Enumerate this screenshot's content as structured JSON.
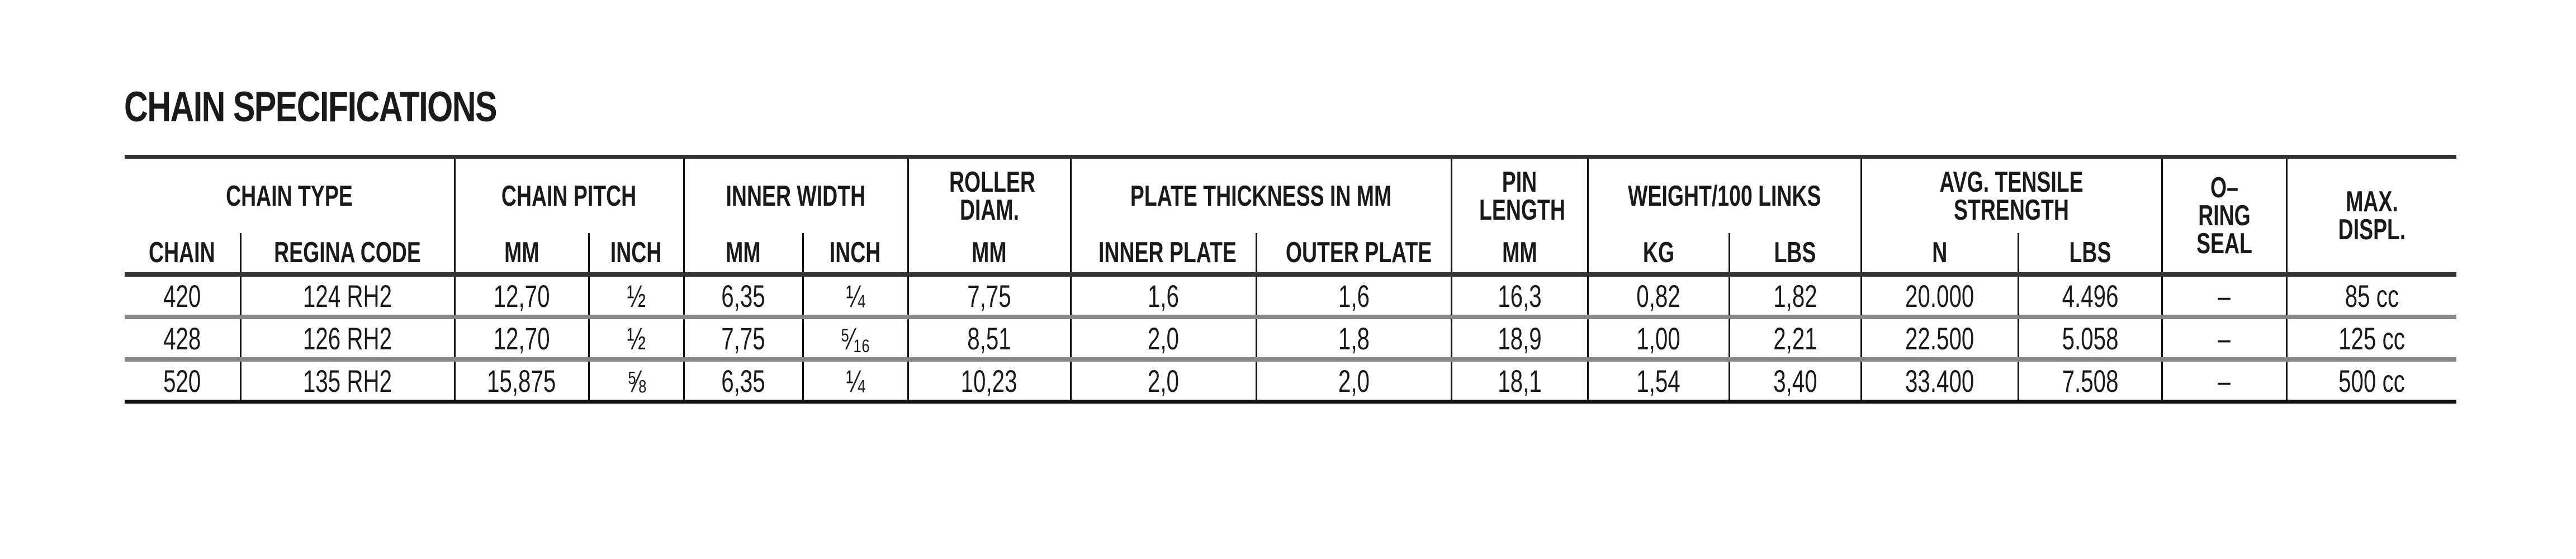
{
  "title": "CHAIN SPECIFICATIONS",
  "header_groups": {
    "chain_type": "CHAIN TYPE",
    "chain_pitch": "CHAIN PITCH",
    "inner_width": "INNER WIDTH",
    "roller_diam": "ROLLER DIAM.",
    "plate_thickness": "PLATE THICKNESS IN MM",
    "pin_length": "PIN LENGTH",
    "weight": "WEIGHT/100 LINKS",
    "tensile": "AVG. TENSILE STRENGTH",
    "oring": "O–RING SEAL",
    "max_displ": "MAX. DISPL."
  },
  "subheaders": [
    "CHAIN",
    "REGINA CODE",
    "MM",
    "INCH",
    "MM",
    "INCH",
    "MM",
    "INNER PLATE",
    "OUTER PLATE",
    "MM",
    "KG",
    "LBS",
    "N",
    "LBS"
  ],
  "rows": [
    [
      "420",
      "124 RH2",
      "12,70",
      "½",
      "6,35",
      "¼",
      "7,75",
      "1,6",
      "1,6",
      "16,3",
      "0,82",
      "1,82",
      "20.000",
      "4.496",
      "–",
      "85 cc"
    ],
    [
      "428",
      "126 RH2",
      "12,70",
      "½",
      "7,75",
      "⁵⁄₁₆",
      "8,51",
      "2,0",
      "1,8",
      "18,9",
      "1,00",
      "2,21",
      "22.500",
      "5.058",
      "–",
      "125 cc"
    ],
    [
      "520",
      "135 RH2",
      "15,875",
      "⅝",
      "6,35",
      "¼",
      "10,23",
      "2,0",
      "2,0",
      "18,1",
      "1,54",
      "3,40",
      "33.400",
      "7.508",
      "–",
      "500 cc"
    ]
  ]
}
